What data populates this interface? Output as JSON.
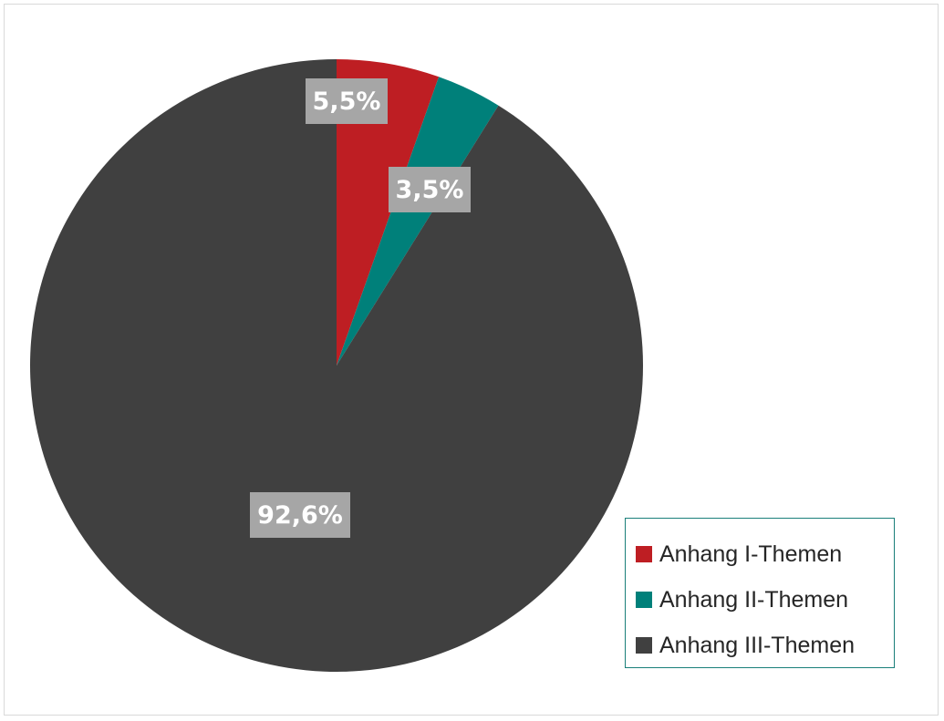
{
  "chart_data": {
    "type": "pie",
    "title": "",
    "slices": [
      {
        "name": "Anhang I-Themen",
        "value": 5.5,
        "label": "5,5%",
        "color": "#be1e23"
      },
      {
        "name": "Anhang II-Themen",
        "value": 3.5,
        "label": "3,5%",
        "color": "#00807a"
      },
      {
        "name": "Anhang III-Themen",
        "value": 92.6,
        "label": "92,6%",
        "color": "#404040"
      }
    ],
    "start_angle": "12 o'clock, clockwise",
    "legend_position": "bottom-right"
  },
  "legend": {
    "items": [
      {
        "label": "Anhang I-Themen",
        "color": "#be1e23"
      },
      {
        "label": "Anhang II-Themen",
        "color": "#00807a"
      },
      {
        "label": "Anhang III-Themen",
        "color": "#404040"
      }
    ]
  }
}
